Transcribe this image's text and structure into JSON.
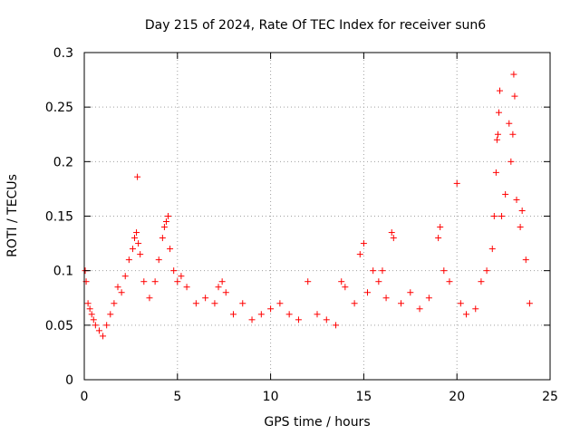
{
  "chart_data": {
    "type": "scatter",
    "title": "Day 215 of 2024, Rate Of TEC Index for receiver sun6",
    "xlabel": "GPS time / hours",
    "ylabel": "ROTI / TECUs",
    "xlim": [
      0,
      25
    ],
    "ylim": [
      0,
      0.3
    ],
    "xticks": [
      0,
      5,
      10,
      15,
      20,
      25
    ],
    "xtick_labels": [
      "0",
      "5",
      "10",
      "15",
      "20",
      "25"
    ],
    "yticks": [
      0,
      0.05,
      0.1,
      0.15,
      0.2,
      0.25,
      0.3
    ],
    "ytick_labels": [
      "0",
      "0.05",
      "0.1",
      "0.15",
      "0.2",
      "0.25",
      "0.3"
    ],
    "grid": true,
    "marker": "+",
    "color": "#ff0000",
    "series": [
      {
        "points": [
          [
            0.05,
            0.1
          ],
          [
            0.1,
            0.09
          ],
          [
            0.2,
            0.07
          ],
          [
            0.3,
            0.065
          ],
          [
            0.4,
            0.06
          ],
          [
            0.5,
            0.055
          ],
          [
            0.6,
            0.05
          ],
          [
            0.8,
            0.045
          ],
          [
            1.0,
            0.04
          ],
          [
            1.2,
            0.05
          ],
          [
            1.4,
            0.06
          ],
          [
            1.6,
            0.07
          ],
          [
            1.8,
            0.085
          ],
          [
            2.0,
            0.08
          ],
          [
            2.2,
            0.095
          ],
          [
            2.4,
            0.11
          ],
          [
            2.6,
            0.12
          ],
          [
            2.7,
            0.13
          ],
          [
            2.8,
            0.135
          ],
          [
            2.9,
            0.125
          ],
          [
            3.0,
            0.115
          ],
          [
            2.85,
            0.186
          ],
          [
            3.2,
            0.09
          ],
          [
            3.5,
            0.075
          ],
          [
            3.8,
            0.09
          ],
          [
            4.0,
            0.11
          ],
          [
            4.2,
            0.13
          ],
          [
            4.3,
            0.14
          ],
          [
            4.4,
            0.145
          ],
          [
            4.5,
            0.15
          ],
          [
            4.6,
            0.12
          ],
          [
            4.8,
            0.1
          ],
          [
            5.0,
            0.09
          ],
          [
            5.2,
            0.095
          ],
          [
            5.5,
            0.085
          ],
          [
            6.0,
            0.07
          ],
          [
            6.5,
            0.075
          ],
          [
            7.0,
            0.07
          ],
          [
            7.2,
            0.085
          ],
          [
            7.4,
            0.09
          ],
          [
            7.6,
            0.08
          ],
          [
            8.0,
            0.06
          ],
          [
            8.5,
            0.07
          ],
          [
            9.0,
            0.055
          ],
          [
            9.5,
            0.06
          ],
          [
            10.0,
            0.065
          ],
          [
            10.5,
            0.07
          ],
          [
            11.0,
            0.06
          ],
          [
            11.5,
            0.055
          ],
          [
            12.0,
            0.09
          ],
          [
            12.5,
            0.06
          ],
          [
            13.0,
            0.055
          ],
          [
            13.5,
            0.05
          ],
          [
            13.8,
            0.09
          ],
          [
            14.0,
            0.085
          ],
          [
            14.5,
            0.07
          ],
          [
            14.8,
            0.115
          ],
          [
            15.0,
            0.125
          ],
          [
            15.2,
            0.08
          ],
          [
            15.5,
            0.1
          ],
          [
            15.8,
            0.09
          ],
          [
            16.0,
            0.1
          ],
          [
            16.2,
            0.075
          ],
          [
            16.5,
            0.135
          ],
          [
            16.6,
            0.13
          ],
          [
            17.0,
            0.07
          ],
          [
            17.5,
            0.08
          ],
          [
            18.0,
            0.065
          ],
          [
            18.5,
            0.075
          ],
          [
            19.0,
            0.13
          ],
          [
            19.1,
            0.14
          ],
          [
            19.3,
            0.1
          ],
          [
            19.6,
            0.09
          ],
          [
            20.0,
            0.18
          ],
          [
            20.2,
            0.07
          ],
          [
            20.5,
            0.06
          ],
          [
            21.0,
            0.065
          ],
          [
            21.3,
            0.09
          ],
          [
            21.6,
            0.1
          ],
          [
            21.9,
            0.12
          ],
          [
            22.0,
            0.15
          ],
          [
            22.1,
            0.19
          ],
          [
            22.15,
            0.22
          ],
          [
            22.2,
            0.225
          ],
          [
            22.25,
            0.245
          ],
          [
            22.3,
            0.265
          ],
          [
            22.4,
            0.15
          ],
          [
            22.6,
            0.17
          ],
          [
            22.8,
            0.235
          ],
          [
            22.9,
            0.2
          ],
          [
            23.0,
            0.225
          ],
          [
            23.05,
            0.28
          ],
          [
            23.1,
            0.26
          ],
          [
            23.2,
            0.165
          ],
          [
            23.4,
            0.14
          ],
          [
            23.5,
            0.155
          ],
          [
            23.7,
            0.11
          ],
          [
            23.9,
            0.07
          ]
        ]
      }
    ]
  }
}
